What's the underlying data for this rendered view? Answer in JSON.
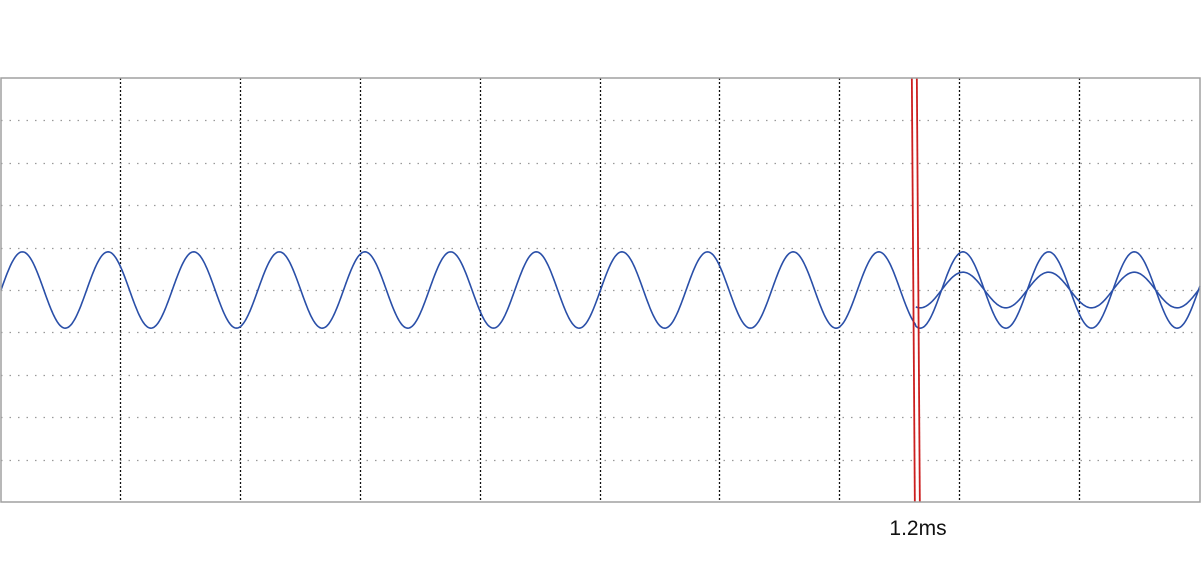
{
  "chart_data": {
    "type": "line",
    "grid": true,
    "x_divisions": 10,
    "y_divisions": 10,
    "xlim_div": [
      0,
      10
    ],
    "ylim_div": [
      -5,
      5
    ],
    "series": [
      {
        "color": "#2a4fa8",
        "amplitude_div": 0.9,
        "cycles_per_div": 1.4,
        "x_range_div": [
          0,
          10
        ]
      },
      {
        "color": "#2a4fa8",
        "amplitude_div": 0.42,
        "cycles_per_div": 1.4,
        "x_range_div": [
          7.63,
          10
        ]
      }
    ],
    "cursor": {
      "x_div": 7.63,
      "label": "1.2ms",
      "color": "#cc1f1f"
    }
  }
}
